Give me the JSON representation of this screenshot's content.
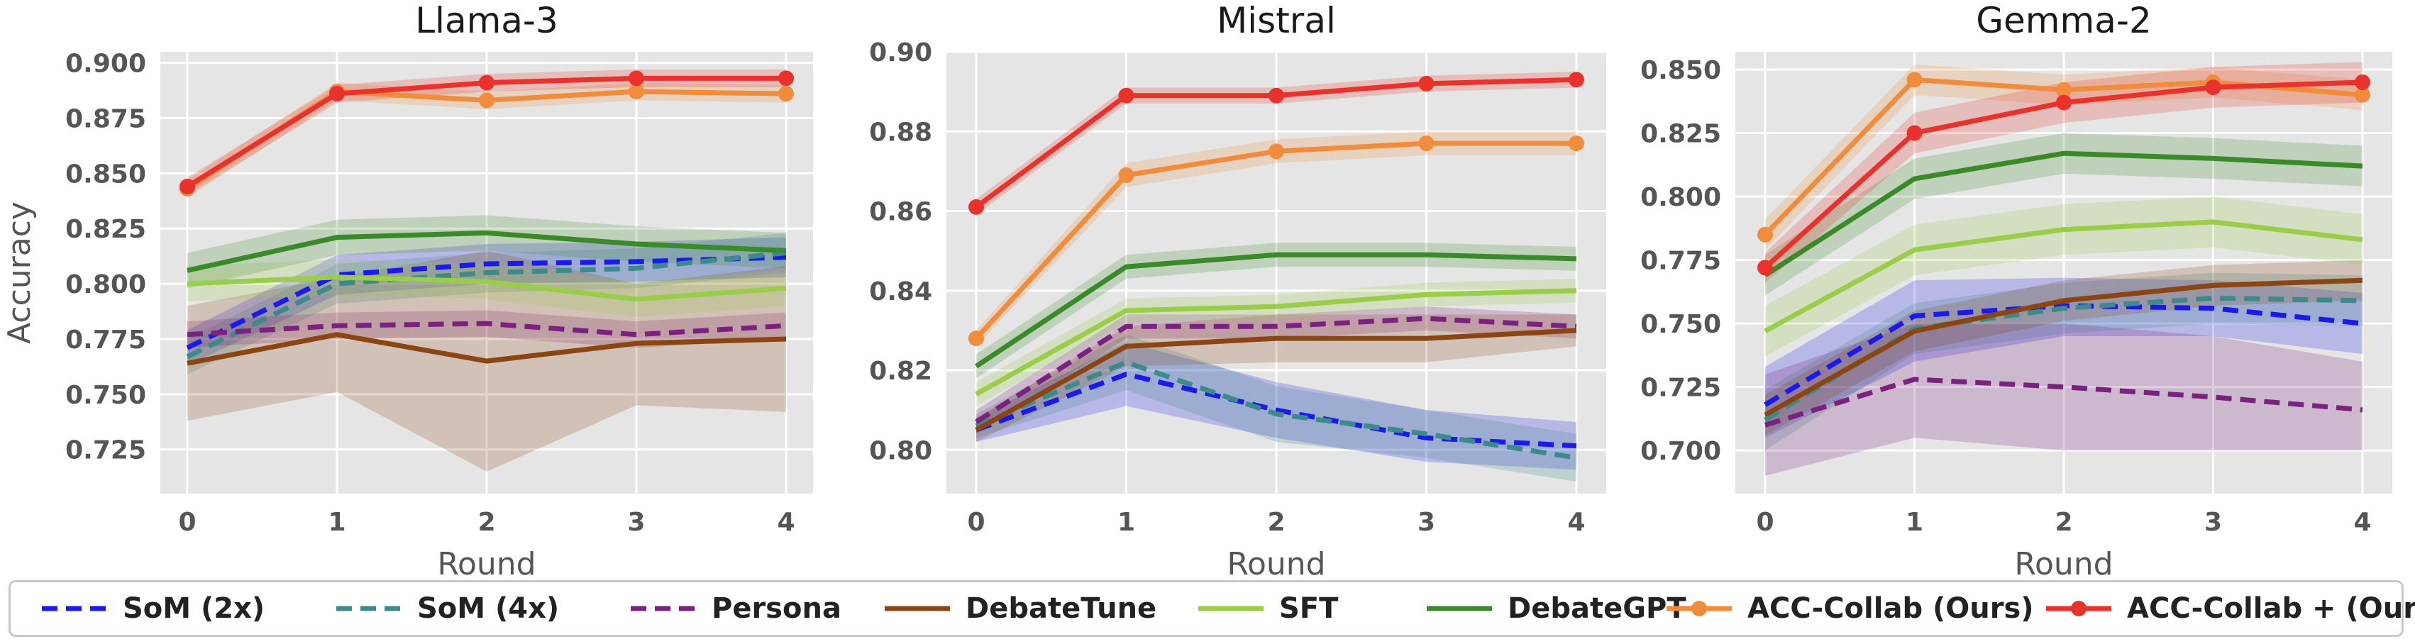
{
  "chart_data": [
    {
      "type": "line",
      "title": "Llama-3",
      "xlabel": "Round",
      "ylabel": "Accuracy",
      "x": [
        0,
        1,
        2,
        3,
        4
      ],
      "ylim": [
        0.705,
        0.905
      ],
      "yticks": [
        "0.900",
        "0.875",
        "0.850",
        "0.825",
        "0.800",
        "0.775",
        "0.750",
        "0.725"
      ],
      "ytick_values": [
        0.9,
        0.875,
        0.85,
        0.825,
        0.8,
        0.775,
        0.75,
        0.725
      ],
      "grid": true,
      "series": [
        {
          "name": "SoM (2x)",
          "values": [
            0.771,
            0.804,
            0.809,
            0.81,
            0.812
          ],
          "band": [
            [
              0.763,
              0.779
            ],
            [
              0.795,
              0.813
            ],
            [
              0.8,
              0.818
            ],
            [
              0.801,
              0.819
            ],
            [
              0.803,
              0.821
            ]
          ]
        },
        {
          "name": "SoM (4x)",
          "values": [
            0.767,
            0.8,
            0.805,
            0.807,
            0.814
          ],
          "band": [
            [
              0.759,
              0.775
            ],
            [
              0.791,
              0.809
            ],
            [
              0.796,
              0.814
            ],
            [
              0.798,
              0.816
            ],
            [
              0.805,
              0.823
            ]
          ]
        },
        {
          "name": "Persona",
          "values": [
            0.777,
            0.781,
            0.782,
            0.777,
            0.781
          ],
          "band": [
            [
              0.771,
              0.783
            ],
            [
              0.775,
              0.787
            ],
            [
              0.776,
              0.788
            ],
            [
              0.771,
              0.783
            ],
            [
              0.775,
              0.787
            ]
          ]
        },
        {
          "name": "DebateTune",
          "values": [
            0.764,
            0.777,
            0.765,
            0.773,
            0.775
          ],
          "band": [
            [
              0.738,
              0.79
            ],
            [
              0.751,
              0.803
            ],
            [
              0.715,
              0.815
            ],
            [
              0.745,
              0.8
            ],
            [
              0.742,
              0.808
            ]
          ]
        },
        {
          "name": "SFT",
          "values": [
            0.8,
            0.803,
            0.801,
            0.793,
            0.798
          ],
          "band": [
            [
              0.792,
              0.808
            ],
            [
              0.795,
              0.811
            ],
            [
              0.793,
              0.809
            ],
            [
              0.785,
              0.801
            ],
            [
              0.79,
              0.806
            ]
          ]
        },
        {
          "name": "DebateGPT",
          "values": [
            0.806,
            0.821,
            0.823,
            0.818,
            0.815
          ],
          "band": [
            [
              0.798,
              0.814
            ],
            [
              0.813,
              0.829
            ],
            [
              0.815,
              0.831
            ],
            [
              0.81,
              0.826
            ],
            [
              0.807,
              0.823
            ]
          ]
        },
        {
          "name": "ACC-Collab (Ours)",
          "values": [
            0.843,
            0.887,
            0.883,
            0.887,
            0.886
          ],
          "band": [
            [
              0.839,
              0.847
            ],
            [
              0.883,
              0.891
            ],
            [
              0.879,
              0.887
            ],
            [
              0.883,
              0.891
            ],
            [
              0.882,
              0.89
            ]
          ]
        },
        {
          "name": "ACC-Collab + (Ours)",
          "values": [
            0.844,
            0.886,
            0.891,
            0.893,
            0.893
          ],
          "band": [
            [
              0.84,
              0.848
            ],
            [
              0.882,
              0.89
            ],
            [
              0.887,
              0.895
            ],
            [
              0.889,
              0.897
            ],
            [
              0.889,
              0.897
            ]
          ]
        }
      ]
    },
    {
      "type": "line",
      "title": "Mistral",
      "xlabel": "Round",
      "ylabel": "",
      "x": [
        0,
        1,
        2,
        3,
        4
      ],
      "ylim": [
        0.789,
        0.9
      ],
      "yticks": [
        "0.90",
        "0.88",
        "0.86",
        "0.84",
        "0.82",
        "0.80"
      ],
      "ytick_values": [
        0.9,
        0.88,
        0.86,
        0.84,
        0.82,
        0.8
      ],
      "grid": true,
      "series": [
        {
          "name": "SoM (2x)",
          "values": [
            0.805,
            0.819,
            0.81,
            0.803,
            0.801
          ],
          "band": [
            [
              0.802,
              0.808
            ],
            [
              0.811,
              0.827
            ],
            [
              0.803,
              0.817
            ],
            [
              0.797,
              0.81
            ],
            [
              0.795,
              0.807
            ]
          ]
        },
        {
          "name": "SoM (4x)",
          "values": [
            0.806,
            0.822,
            0.809,
            0.804,
            0.798
          ],
          "band": [
            [
              0.803,
              0.809
            ],
            [
              0.815,
              0.829
            ],
            [
              0.802,
              0.816
            ],
            [
              0.798,
              0.81
            ],
            [
              0.792,
              0.804
            ]
          ]
        },
        {
          "name": "Persona",
          "values": [
            0.807,
            0.831,
            0.831,
            0.833,
            0.831
          ],
          "band": [
            [
              0.804,
              0.81
            ],
            [
              0.828,
              0.834
            ],
            [
              0.828,
              0.834
            ],
            [
              0.83,
              0.836
            ],
            [
              0.828,
              0.834
            ]
          ]
        },
        {
          "name": "DebateTune",
          "values": [
            0.805,
            0.826,
            0.828,
            0.828,
            0.83
          ],
          "band": [
            [
              0.802,
              0.808
            ],
            [
              0.821,
              0.831
            ],
            [
              0.822,
              0.834
            ],
            [
              0.822,
              0.834
            ],
            [
              0.826,
              0.834
            ]
          ]
        },
        {
          "name": "SFT",
          "values": [
            0.814,
            0.835,
            0.836,
            0.839,
            0.84
          ],
          "band": [
            [
              0.811,
              0.817
            ],
            [
              0.832,
              0.838
            ],
            [
              0.833,
              0.839
            ],
            [
              0.836,
              0.842
            ],
            [
              0.837,
              0.843
            ]
          ]
        },
        {
          "name": "DebateGPT",
          "values": [
            0.821,
            0.846,
            0.849,
            0.849,
            0.848
          ],
          "band": [
            [
              0.818,
              0.824
            ],
            [
              0.843,
              0.849
            ],
            [
              0.846,
              0.852
            ],
            [
              0.846,
              0.852
            ],
            [
              0.845,
              0.851
            ]
          ]
        },
        {
          "name": "ACC-Collab (Ours)",
          "values": [
            0.828,
            0.869,
            0.875,
            0.877,
            0.877
          ],
          "band": [
            [
              0.826,
              0.83
            ],
            [
              0.866,
              0.872
            ],
            [
              0.872,
              0.878
            ],
            [
              0.874,
              0.88
            ],
            [
              0.874,
              0.88
            ]
          ]
        },
        {
          "name": "ACC-Collab + (Ours)",
          "values": [
            0.861,
            0.889,
            0.889,
            0.892,
            0.893
          ],
          "band": [
            [
              0.859,
              0.863
            ],
            [
              0.887,
              0.891
            ],
            [
              0.887,
              0.891
            ],
            [
              0.89,
              0.894
            ],
            [
              0.891,
              0.895
            ]
          ]
        }
      ]
    },
    {
      "type": "line",
      "title": "Gemma-2",
      "xlabel": "Round",
      "ylabel": "",
      "x": [
        0,
        1,
        2,
        3,
        4
      ],
      "ylim": [
        0.683,
        0.857
      ],
      "yticks": [
        "0.850",
        "0.825",
        "0.800",
        "0.775",
        "0.750",
        "0.725",
        "0.700"
      ],
      "ytick_values": [
        0.85,
        0.825,
        0.8,
        0.775,
        0.75,
        0.725,
        0.7
      ],
      "grid": true,
      "series": [
        {
          "name": "SoM (2x)",
          "values": [
            0.718,
            0.753,
            0.757,
            0.756,
            0.75
          ],
          "band": [
            [
              0.705,
              0.733
            ],
            [
              0.735,
              0.767
            ],
            [
              0.745,
              0.768
            ],
            [
              0.745,
              0.767
            ],
            [
              0.738,
              0.762
            ]
          ]
        },
        {
          "name": "SoM (4x)",
          "values": [
            0.712,
            0.748,
            0.756,
            0.76,
            0.759
          ],
          "band": [
            [
              0.7,
              0.724
            ],
            [
              0.738,
              0.758
            ],
            [
              0.746,
              0.766
            ],
            [
              0.75,
              0.77
            ],
            [
              0.749,
              0.769
            ]
          ]
        },
        {
          "name": "Persona",
          "values": [
            0.71,
            0.728,
            0.725,
            0.721,
            0.716
          ],
          "band": [
            [
              0.69,
              0.73
            ],
            [
              0.705,
              0.75
            ],
            [
              0.7,
              0.75
            ],
            [
              0.7,
              0.745
            ],
            [
              0.7,
              0.735
            ]
          ]
        },
        {
          "name": "DebateTune",
          "values": [
            0.714,
            0.747,
            0.759,
            0.765,
            0.767
          ],
          "band": [
            [
              0.706,
              0.722
            ],
            [
              0.739,
              0.755
            ],
            [
              0.751,
              0.767
            ],
            [
              0.757,
              0.773
            ],
            [
              0.759,
              0.775
            ]
          ]
        },
        {
          "name": "SFT",
          "values": [
            0.747,
            0.779,
            0.787,
            0.79,
            0.783
          ],
          "band": [
            [
              0.737,
              0.757
            ],
            [
              0.769,
              0.789
            ],
            [
              0.777,
              0.797
            ],
            [
              0.78,
              0.8
            ],
            [
              0.773,
              0.793
            ]
          ]
        },
        {
          "name": "DebateGPT",
          "values": [
            0.769,
            0.807,
            0.817,
            0.815,
            0.812
          ],
          "band": [
            [
              0.761,
              0.777
            ],
            [
              0.799,
              0.815
            ],
            [
              0.809,
              0.825
            ],
            [
              0.807,
              0.823
            ],
            [
              0.804,
              0.82
            ]
          ]
        },
        {
          "name": "ACC-Collab (Ours)",
          "values": [
            0.785,
            0.846,
            0.842,
            0.845,
            0.84
          ],
          "band": [
            [
              0.779,
              0.791
            ],
            [
              0.84,
              0.852
            ],
            [
              0.836,
              0.848
            ],
            [
              0.839,
              0.851
            ],
            [
              0.834,
              0.846
            ]
          ]
        },
        {
          "name": "ACC-Collab + (Ours)",
          "values": [
            0.772,
            0.825,
            0.837,
            0.843,
            0.845
          ],
          "band": [
            [
              0.766,
              0.778
            ],
            [
              0.817,
              0.833
            ],
            [
              0.829,
              0.845
            ],
            [
              0.835,
              0.851
            ],
            [
              0.837,
              0.853
            ]
          ]
        }
      ]
    }
  ],
  "legend": {
    "items": [
      {
        "label": "SoM (2x)",
        "color": "#1a1aee",
        "style": "dashed",
        "marker": false
      },
      {
        "label": "SoM (4x)",
        "color": "#3d8a8a",
        "style": "dashed",
        "marker": false
      },
      {
        "label": "Persona",
        "color": "#7b2280",
        "style": "dashed",
        "marker": false
      },
      {
        "label": "DebateTune",
        "color": "#8b4513",
        "style": "solid",
        "marker": false
      },
      {
        "label": "SFT",
        "color": "#9acd4a",
        "style": "solid",
        "marker": false
      },
      {
        "label": "DebateGPT",
        "color": "#3a8a2a",
        "style": "solid",
        "marker": false
      },
      {
        "label": "ACC-Collab (Ours)",
        "color": "#f08c3c",
        "style": "solid",
        "marker": true
      },
      {
        "label": "ACC-Collab + (Ours)",
        "color": "#e8322b",
        "style": "solid",
        "marker": true
      }
    ]
  }
}
